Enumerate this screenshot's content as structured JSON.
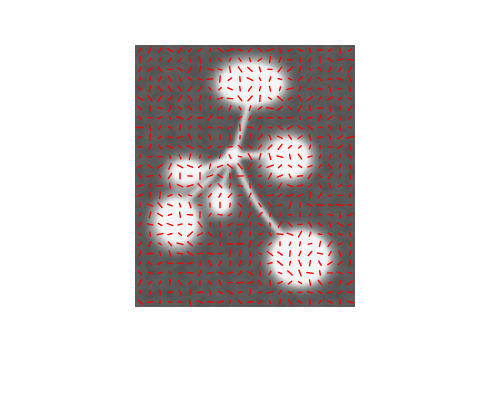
{
  "figure": {
    "description_name": "grayscale-microscopy-image-with-vector-field",
    "background_color": "#ffffff",
    "image_colors": {
      "texture_dark": "#3f3f3f",
      "texture_mid": "#6e6e6e",
      "texture_light": "#8c8c8c",
      "blob": "#f4f4f4",
      "arrow": "#ff0000"
    },
    "grid": {
      "columns": 22,
      "rows": 27
    }
  }
}
